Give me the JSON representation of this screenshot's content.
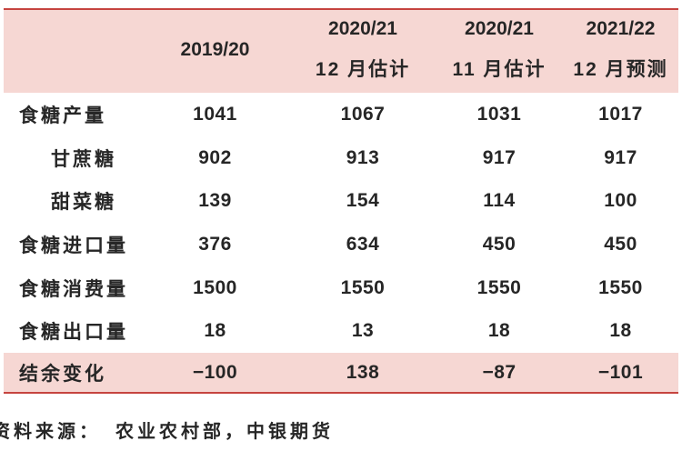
{
  "colors": {
    "pink_band": "#f6d7d3",
    "red_line": "#c64440",
    "text": "#262626",
    "background": "#ffffff"
  },
  "table": {
    "header": [
      {
        "line1": "",
        "line2": ""
      },
      {
        "line1": "2019/20",
        "line2": ""
      },
      {
        "line1": "2020/21",
        "line2": "12 月估计"
      },
      {
        "line1": "2020/21",
        "line2": "11 月估计"
      },
      {
        "line1": "2021/22",
        "line2": "12 月预测"
      }
    ],
    "rows": [
      {
        "label": "食糖产量",
        "values": [
          "1041",
          "1067",
          "1031",
          "1017"
        ]
      },
      {
        "label": "甘蔗糖",
        "values": [
          "902",
          "913",
          "917",
          "917"
        ]
      },
      {
        "label": "甜菜糖",
        "values": [
          "139",
          "154",
          "114",
          "100"
        ]
      },
      {
        "label": "食糖进口量",
        "values": [
          "376",
          "634",
          "450",
          "450"
        ]
      },
      {
        "label": "食糖消费量",
        "values": [
          "1500",
          "1550",
          "1550",
          "1550"
        ]
      },
      {
        "label": "食糖出口量",
        "values": [
          "18",
          "13",
          "18",
          "18"
        ]
      }
    ],
    "total_row": {
      "label": "结余变化",
      "values": [
        "−100",
        "138",
        "−87",
        "−101"
      ]
    }
  },
  "source": {
    "prefix": "资料来源：",
    "text": "农业农村部，中银期货"
  },
  "chart_data": {
    "type": "table",
    "columns": [
      "2019/20",
      "2020/21 12月估计",
      "2020/21 11月估计",
      "2021/22 12月预测"
    ],
    "rows": [
      {
        "label": "食糖产量",
        "values": [
          1041,
          1067,
          1031,
          1017
        ]
      },
      {
        "label": "甘蔗糖",
        "values": [
          902,
          913,
          917,
          917
        ]
      },
      {
        "label": "甜菜糖",
        "values": [
          139,
          154,
          114,
          100
        ]
      },
      {
        "label": "食糖进口量",
        "values": [
          376,
          634,
          450,
          450
        ]
      },
      {
        "label": "食糖消费量",
        "values": [
          1500,
          1550,
          1550,
          1550
        ]
      },
      {
        "label": "食糖出口量",
        "values": [
          18,
          13,
          18,
          18
        ]
      },
      {
        "label": "结余变化",
        "values": [
          -100,
          138,
          -87,
          -101
        ]
      }
    ],
    "source": "资料来源： 农业农村部，中银期货",
    "layout": {
      "header_background": "#f6d7d3",
      "total_row_background": "#f6d7d3",
      "rule_color": "#c64440"
    }
  }
}
